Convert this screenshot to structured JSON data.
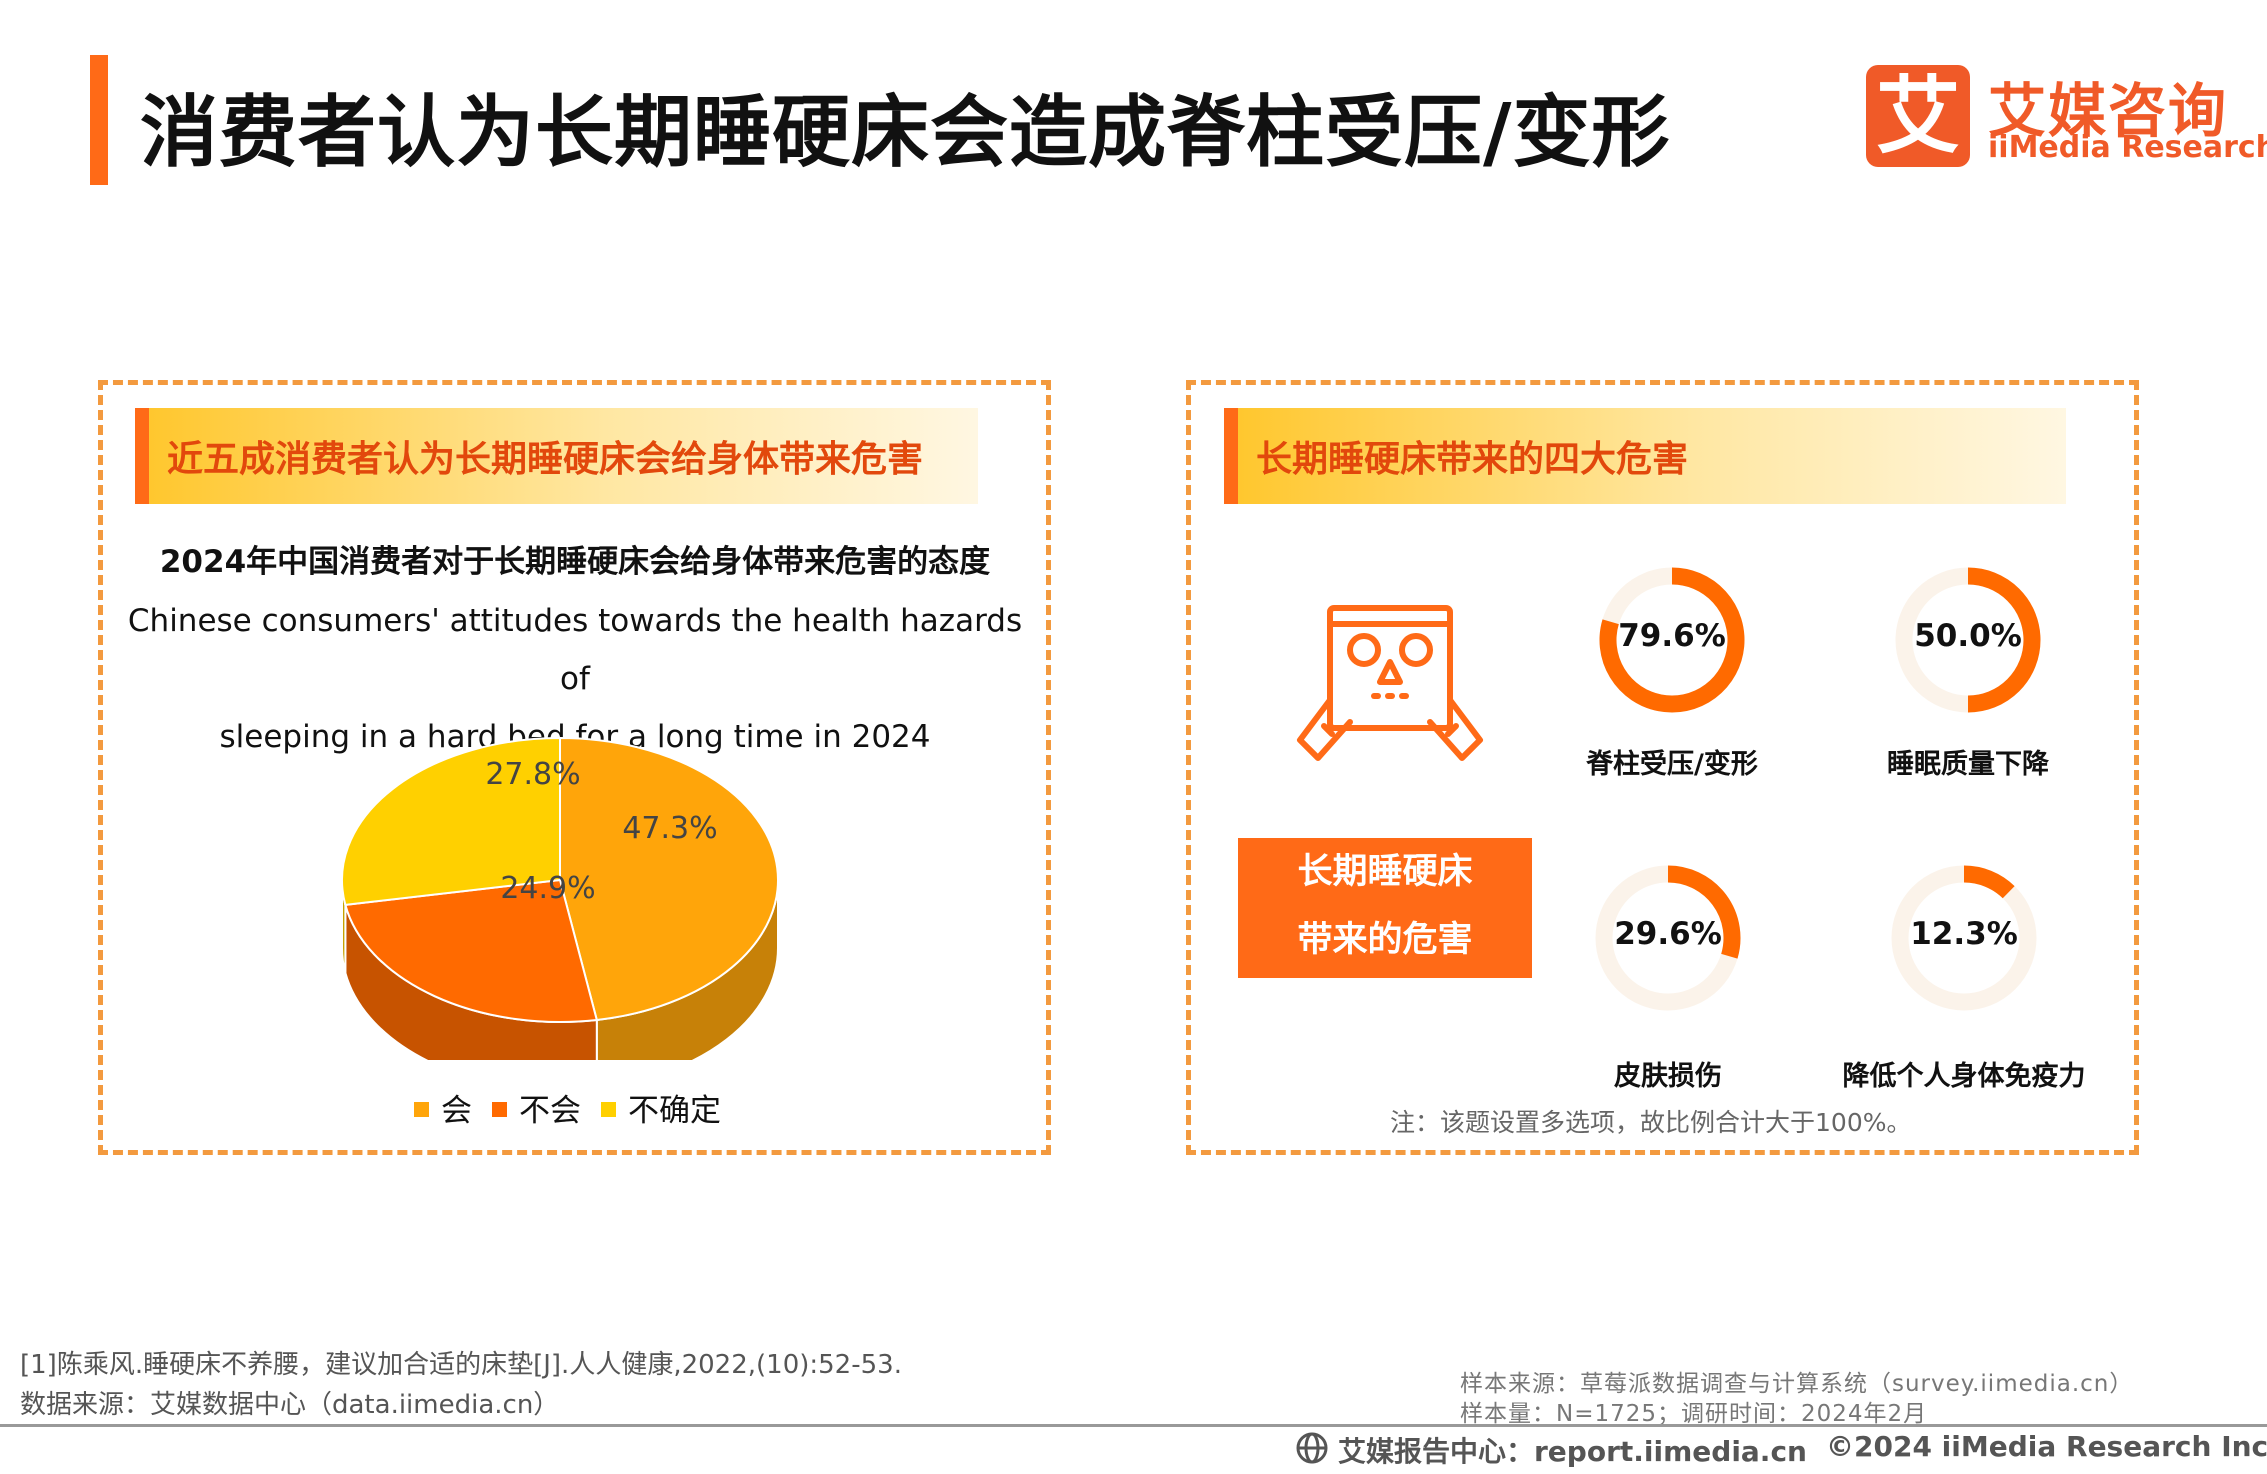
{
  "header": {
    "title": "消费者认为长期睡硬床会造成脊柱受压/变形",
    "logo_mark": "艾",
    "logo_cn": "艾媒咨询",
    "logo_en": "iiMedia Research"
  },
  "left_panel": {
    "banner": "近五成消费者认为长期睡硬床会给身体带来危害",
    "chart_title_cn": "2024年中国消费者对于长期睡硬床会给身体带来危害的态度",
    "chart_title_en_1": "Chinese consumers' attitudes towards the health hazards of",
    "chart_title_en_2": "sleeping in a hard bed for a long time in 2024"
  },
  "chart_data": [
    {
      "type": "pie",
      "title": "2024年中国消费者对于长期睡硬床会给身体带来危害的态度",
      "categories": [
        "会",
        "不会",
        "不确定"
      ],
      "values": [
        47.3,
        24.9,
        27.8
      ],
      "labels": [
        "47.3%",
        "24.9%",
        "27.8%"
      ],
      "colors": [
        "#ffa50a",
        "#ff6a00",
        "#ffd000"
      ],
      "legend": "bottom"
    },
    {
      "type": "pie",
      "title": "长期睡硬床带来的四大危害",
      "categories": [
        "脊柱受压/变形",
        "睡眠质量下降",
        "皮肤损伤",
        "降低个人身体免疫力"
      ],
      "values": [
        79.6,
        50.0,
        29.6,
        12.3
      ],
      "labels": [
        "79.6%",
        "50.0%",
        "29.6%",
        "12.3%"
      ],
      "colors": [
        "#ff6a00"
      ],
      "note": "注：该题设置多选项，故比例合计大于100%。"
    }
  ],
  "right_panel": {
    "banner": "长期睡硬床带来的四大危害",
    "harm_box_line1": "长期睡硬床",
    "harm_box_line2": "带来的危害",
    "note": "注：该题设置多选项，故比例合计大于100%。"
  },
  "footer": {
    "ref": "[1]陈乘风.睡硬床不养腰，建议加合适的床垫[J].人人健康,2022,(10):52-53.",
    "data_source": "数据来源：艾媒数据中心（data.iimedia.cn）",
    "sample_source": "样本来源：草莓派数据调查与计算系统（survey.iimedia.cn）",
    "sample_size": "样本量：N=1725；调研时间：2024年2月",
    "report_center": "艾媒报告中心：report.iimedia.cn",
    "copyright": "©2024  iiMedia Research  Inc"
  }
}
